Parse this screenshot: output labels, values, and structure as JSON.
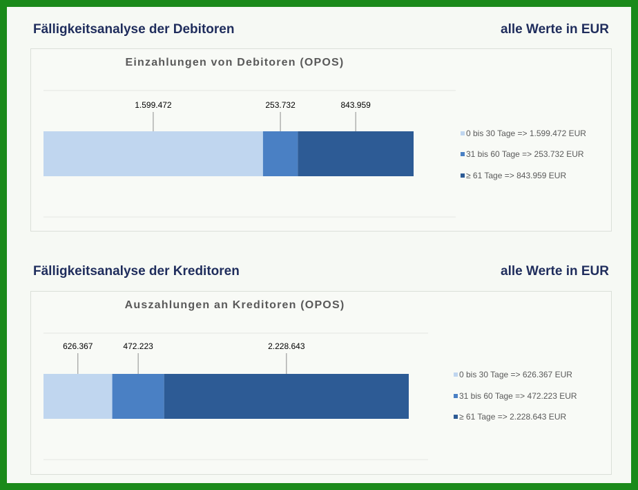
{
  "colors": {
    "seg0": "#c0d6ef",
    "seg1": "#4a80c4",
    "seg2": "#2d5b95",
    "title": "#1f2d5c",
    "frame": "#1a8a1a"
  },
  "sections": [
    {
      "heading": "Fälligkeitsanalyse der Debitoren",
      "unit_note": "alle Werte in EUR",
      "chart_data": {
        "type": "bar",
        "orientation": "horizontal-stacked",
        "title": "Einzahlungen von Debitoren (OPOS)",
        "series": [
          {
            "name": "0 bis 30 Tage => 1.599.472 EUR",
            "value": 1599472,
            "label": "1.599.472"
          },
          {
            "name": "31 bis 60 Tage => 253.732 EUR",
            "value": 253732,
            "label": "253.732"
          },
          {
            "name": "≥ 61 Tage => 843.959 EUR",
            "value": 843959,
            "label": "843.959"
          }
        ],
        "legend_position": "right"
      }
    },
    {
      "heading": "Fälligkeitsanalyse der Kreditoren",
      "unit_note": "alle Werte in EUR",
      "chart_data": {
        "type": "bar",
        "orientation": "horizontal-stacked",
        "title": "Auszahlungen an Kreditoren (OPOS)",
        "series": [
          {
            "name": "0 bis 30 Tage => 626.367 EUR",
            "value": 626367,
            "label": "626.367"
          },
          {
            "name": "31 bis 60 Tage => 472.223 EUR",
            "value": 472223,
            "label": "472.223"
          },
          {
            "name": "≥ 61 Tage => 2.228.643 EUR",
            "value": 2228643,
            "label": "2.228.643"
          }
        ],
        "legend_position": "right"
      }
    }
  ]
}
